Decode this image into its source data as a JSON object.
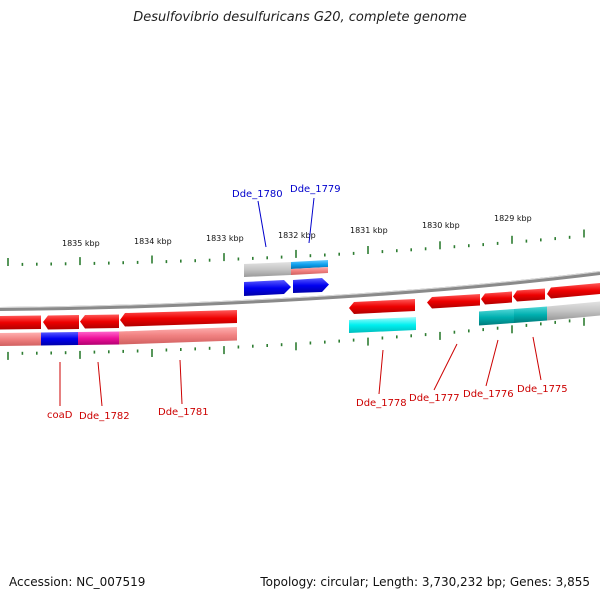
{
  "title": "Desulfovibrio desulfuricans G20, complete genome",
  "footer": {
    "accession": "Accession: NC_007519",
    "info": "Topology: circular; Length: 3,730,232 bp; Genes: 3,855"
  },
  "colors": {
    "label_red": "#cc0000",
    "label_blue": "#0000cc",
    "tick_green": "#2e7d32",
    "backbone": "#8a8a8a"
  },
  "tick_labels": [
    "1835 kbp",
    "1834 kbp",
    "1833 kbp",
    "1832 kbp",
    "1831 kbp",
    "1830 kbp",
    "1829 kbp"
  ],
  "gene_labels": [
    "Dde_1780",
    "Dde_1779",
    "coaD",
    "Dde_1782",
    "Dde_1781",
    "Dde_1778",
    "Dde_1777",
    "Dde_1776",
    "Dde_1775"
  ]
}
